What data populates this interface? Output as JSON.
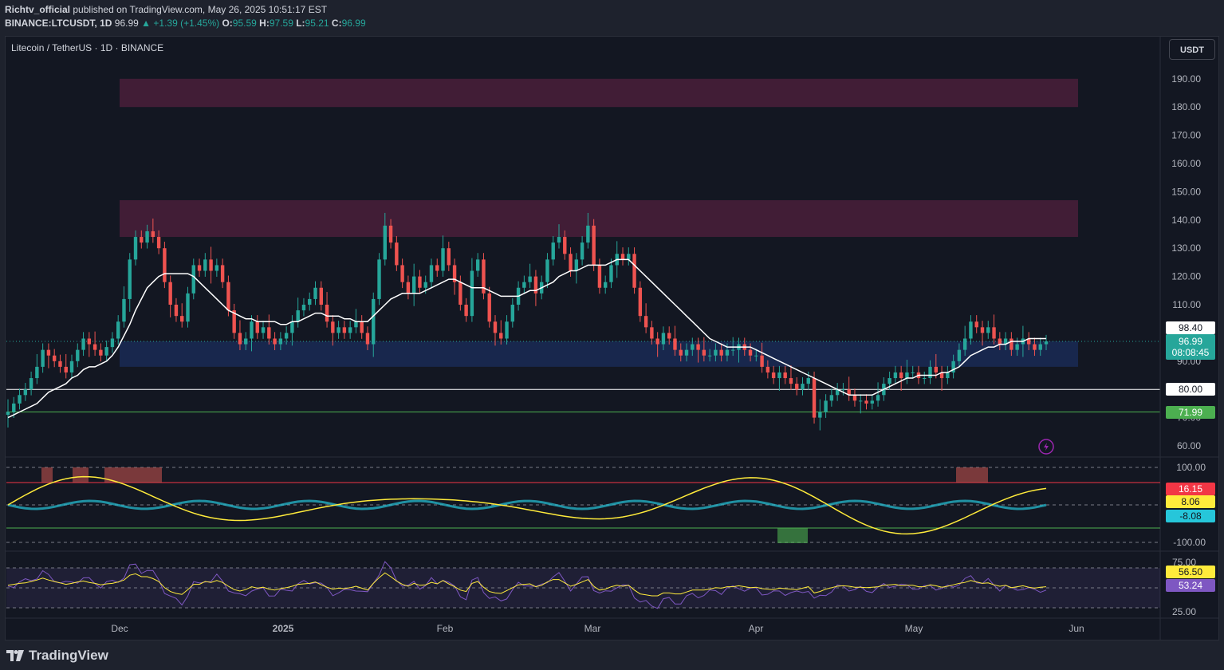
{
  "header": {
    "author": "Richtv_official",
    "published": "published on TradingView.com, May 26, 2025 10:51:17 EST",
    "symbol_line": "BINANCE:LTCUSDT, 1D",
    "last": "96.99",
    "change": "▲ +1.39 (+1.45%)",
    "o_label": "O:",
    "o": "95.59",
    "h_label": "H:",
    "h": "97.59",
    "l_label": "L:",
    "l": "95.21",
    "c_label": "C:",
    "c": "96.99"
  },
  "chart_title": "Litecoin / TetherUS · 1D · BINANCE",
  "currency_button": "USDT",
  "footer_brand": "TradingView",
  "price_labels": {
    "ma": "98.40",
    "last": "96.99",
    "countdown": "08:08:45",
    "level_80": "80.00",
    "level_72": "71.99",
    "osc_a": "16.15",
    "osc_b": "8.06",
    "osc_c": "-8.08",
    "rsi_ma": "56.50",
    "rsi": "53.24"
  },
  "colors": {
    "up": "#26a69a",
    "down": "#ef5350",
    "ma": "#ffffff",
    "resistance_zone": "#4a1f3a",
    "support_zone": "#1a2a55",
    "line_80": "#ffffff",
    "line_72": "#4caf50"
  },
  "chart_data": [
    {
      "type": "candlestick",
      "title": "Litecoin / TetherUS · 1D · BINANCE",
      "x_ticks": [
        "Dec",
        "2025",
        "Feb",
        "Mar",
        "Apr",
        "May",
        "Jun"
      ],
      "y_ticks": [
        60,
        70,
        80,
        90,
        100,
        110,
        120,
        130,
        140,
        150,
        160,
        170,
        180,
        190
      ],
      "ylim": [
        57,
        200
      ],
      "horizontal_lines": [
        80.0,
        71.99
      ],
      "zones": [
        {
          "from": 180,
          "to": 190
        },
        {
          "from": 134,
          "to": 147
        },
        {
          "from": 88,
          "to": 97
        }
      ],
      "close_series": [
        72,
        75,
        78,
        80,
        84,
        88,
        94,
        92,
        90,
        88,
        86,
        90,
        94,
        98,
        96,
        94,
        92,
        95,
        98,
        104,
        112,
        126,
        134,
        132,
        136,
        134,
        130,
        118,
        110,
        106,
        104,
        114,
        124,
        122,
        126,
        122,
        124,
        118,
        108,
        100,
        96,
        98,
        104,
        100,
        102,
        98,
        96,
        98,
        100,
        104,
        108,
        110,
        112,
        116,
        110,
        104,
        100,
        102,
        100,
        102,
        104,
        100,
        96,
        112,
        126,
        138,
        132,
        124,
        118,
        114,
        120,
        116,
        118,
        124,
        122,
        130,
        124,
        118,
        110,
        106,
        122,
        126,
        114,
        104,
        100,
        98,
        104,
        110,
        116,
        118,
        120,
        114,
        118,
        126,
        132,
        134,
        128,
        122,
        126,
        132,
        138,
        124,
        116,
        118,
        124,
        128,
        126,
        128,
        116,
        106,
        102,
        98,
        96,
        100,
        98,
        94,
        92,
        94,
        96,
        94,
        92,
        92,
        94,
        92,
        94,
        94,
        96,
        94,
        92,
        92,
        88,
        86,
        84,
        86,
        84,
        82,
        80,
        82,
        84,
        70,
        72,
        76,
        78,
        80,
        80,
        78,
        76,
        76,
        75,
        76,
        78,
        82,
        84,
        86,
        84,
        86,
        86,
        84,
        84,
        88,
        86,
        84,
        86,
        90,
        94,
        98,
        104,
        102,
        100,
        102,
        98,
        96,
        98,
        94,
        96,
        98,
        96,
        94,
        96,
        97
      ],
      "ma_series": [
        70,
        71,
        72,
        73,
        74,
        75,
        77,
        79,
        80,
        81,
        82,
        84,
        85,
        87,
        88,
        88,
        89,
        90,
        92,
        95,
        99,
        103,
        108,
        112,
        116,
        118,
        120,
        121,
        121,
        121,
        121,
        121,
        120,
        118,
        116,
        114,
        112,
        110,
        108,
        107,
        106,
        105,
        105,
        104,
        104,
        104,
        104,
        103,
        103,
        104,
        104,
        105,
        106,
        107,
        107,
        106,
        106,
        106,
        105,
        105,
        104,
        104,
        104,
        106,
        108,
        110,
        112,
        113,
        114,
        114,
        114,
        114,
        115,
        116,
        117,
        118,
        119,
        119,
        118,
        117,
        116,
        116,
        116,
        115,
        114,
        113,
        113,
        113,
        113,
        114,
        115,
        115,
        116,
        117,
        118,
        120,
        121,
        122,
        122,
        123,
        124,
        124,
        124,
        124,
        125,
        126,
        126,
        126,
        124,
        122,
        120,
        118,
        116,
        114,
        112,
        110,
        108,
        106,
        104,
        102,
        100,
        98,
        97,
        96,
        95,
        95,
        95,
        95,
        95,
        94,
        93,
        92,
        91,
        90,
        89,
        88,
        87,
        86,
        85,
        84,
        83,
        82,
        81,
        80,
        79,
        78,
        78,
        78,
        78,
        78,
        79,
        80,
        81,
        82,
        83,
        84,
        84,
        85,
        85,
        85,
        85,
        86,
        86,
        87,
        88,
        90,
        92,
        93,
        94,
        95,
        95,
        96,
        96,
        97,
        97,
        97,
        98,
        98,
        98,
        98
      ],
      "oscillator": {
        "levels": [
          100,
          -100
        ],
        "labels": [
          "16.15",
          "8.06",
          "-8.08"
        ]
      },
      "rsi": {
        "y_ticks": [
          75,
          25
        ],
        "values": [
          "56.50",
          "53.24"
        ]
      }
    }
  ]
}
